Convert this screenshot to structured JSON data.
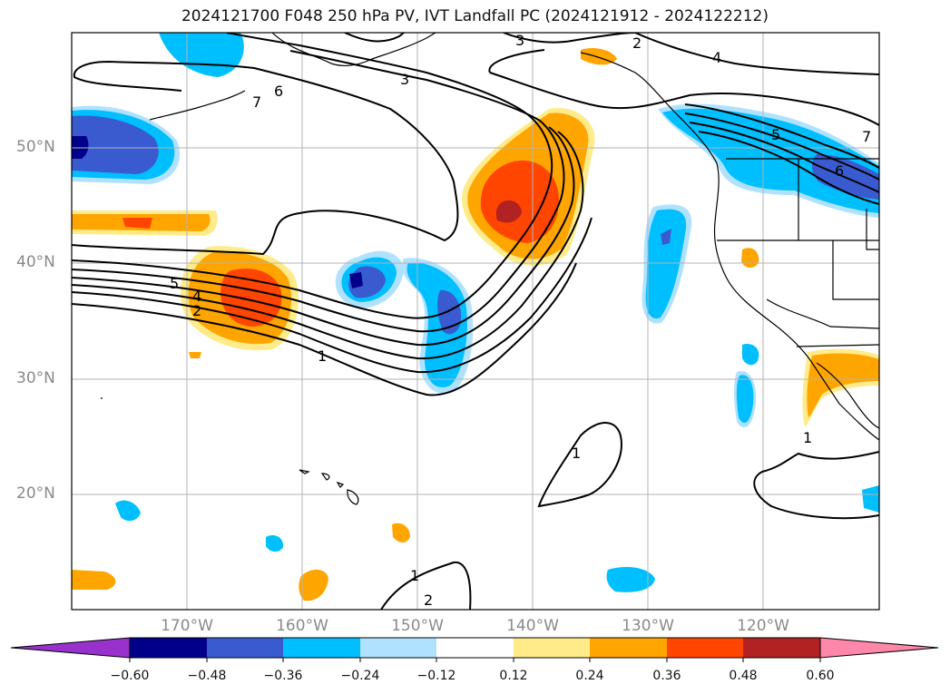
{
  "title": "2024121700 F048 250 hPa PV, IVT Landfall PC (2024121912 - 2024122212)",
  "lat_labels": [
    "50°N",
    "40°N",
    "30°N",
    "20°N"
  ],
  "lon_labels": [
    "170°W",
    "160°W",
    "150°W",
    "140°W",
    "130°W",
    "120°W"
  ],
  "colorbar": {
    "ticks": [
      "−0.60",
      "−0.48",
      "−0.36",
      "−0.24",
      "−0.12",
      "0.12",
      "0.24",
      "0.36",
      "0.48",
      "0.60"
    ],
    "colors": [
      "#9932cc",
      "#00008b",
      "#3a5bd0",
      "#00bfff",
      "#b0e2ff",
      "#ffffff",
      "#ffeb8a",
      "#ffa500",
      "#ff4500",
      "#b22222",
      "#ff88aa"
    ]
  },
  "contour_labels": [
    "7",
    "6",
    "3",
    "3",
    "2",
    "4",
    "5",
    "7",
    "6",
    "5",
    "4",
    "2",
    "1",
    "1",
    "1",
    "1",
    "2"
  ],
  "colors": {
    "grid": "#b3b3b3",
    "contour": "#000000",
    "coast": "#000000"
  }
}
